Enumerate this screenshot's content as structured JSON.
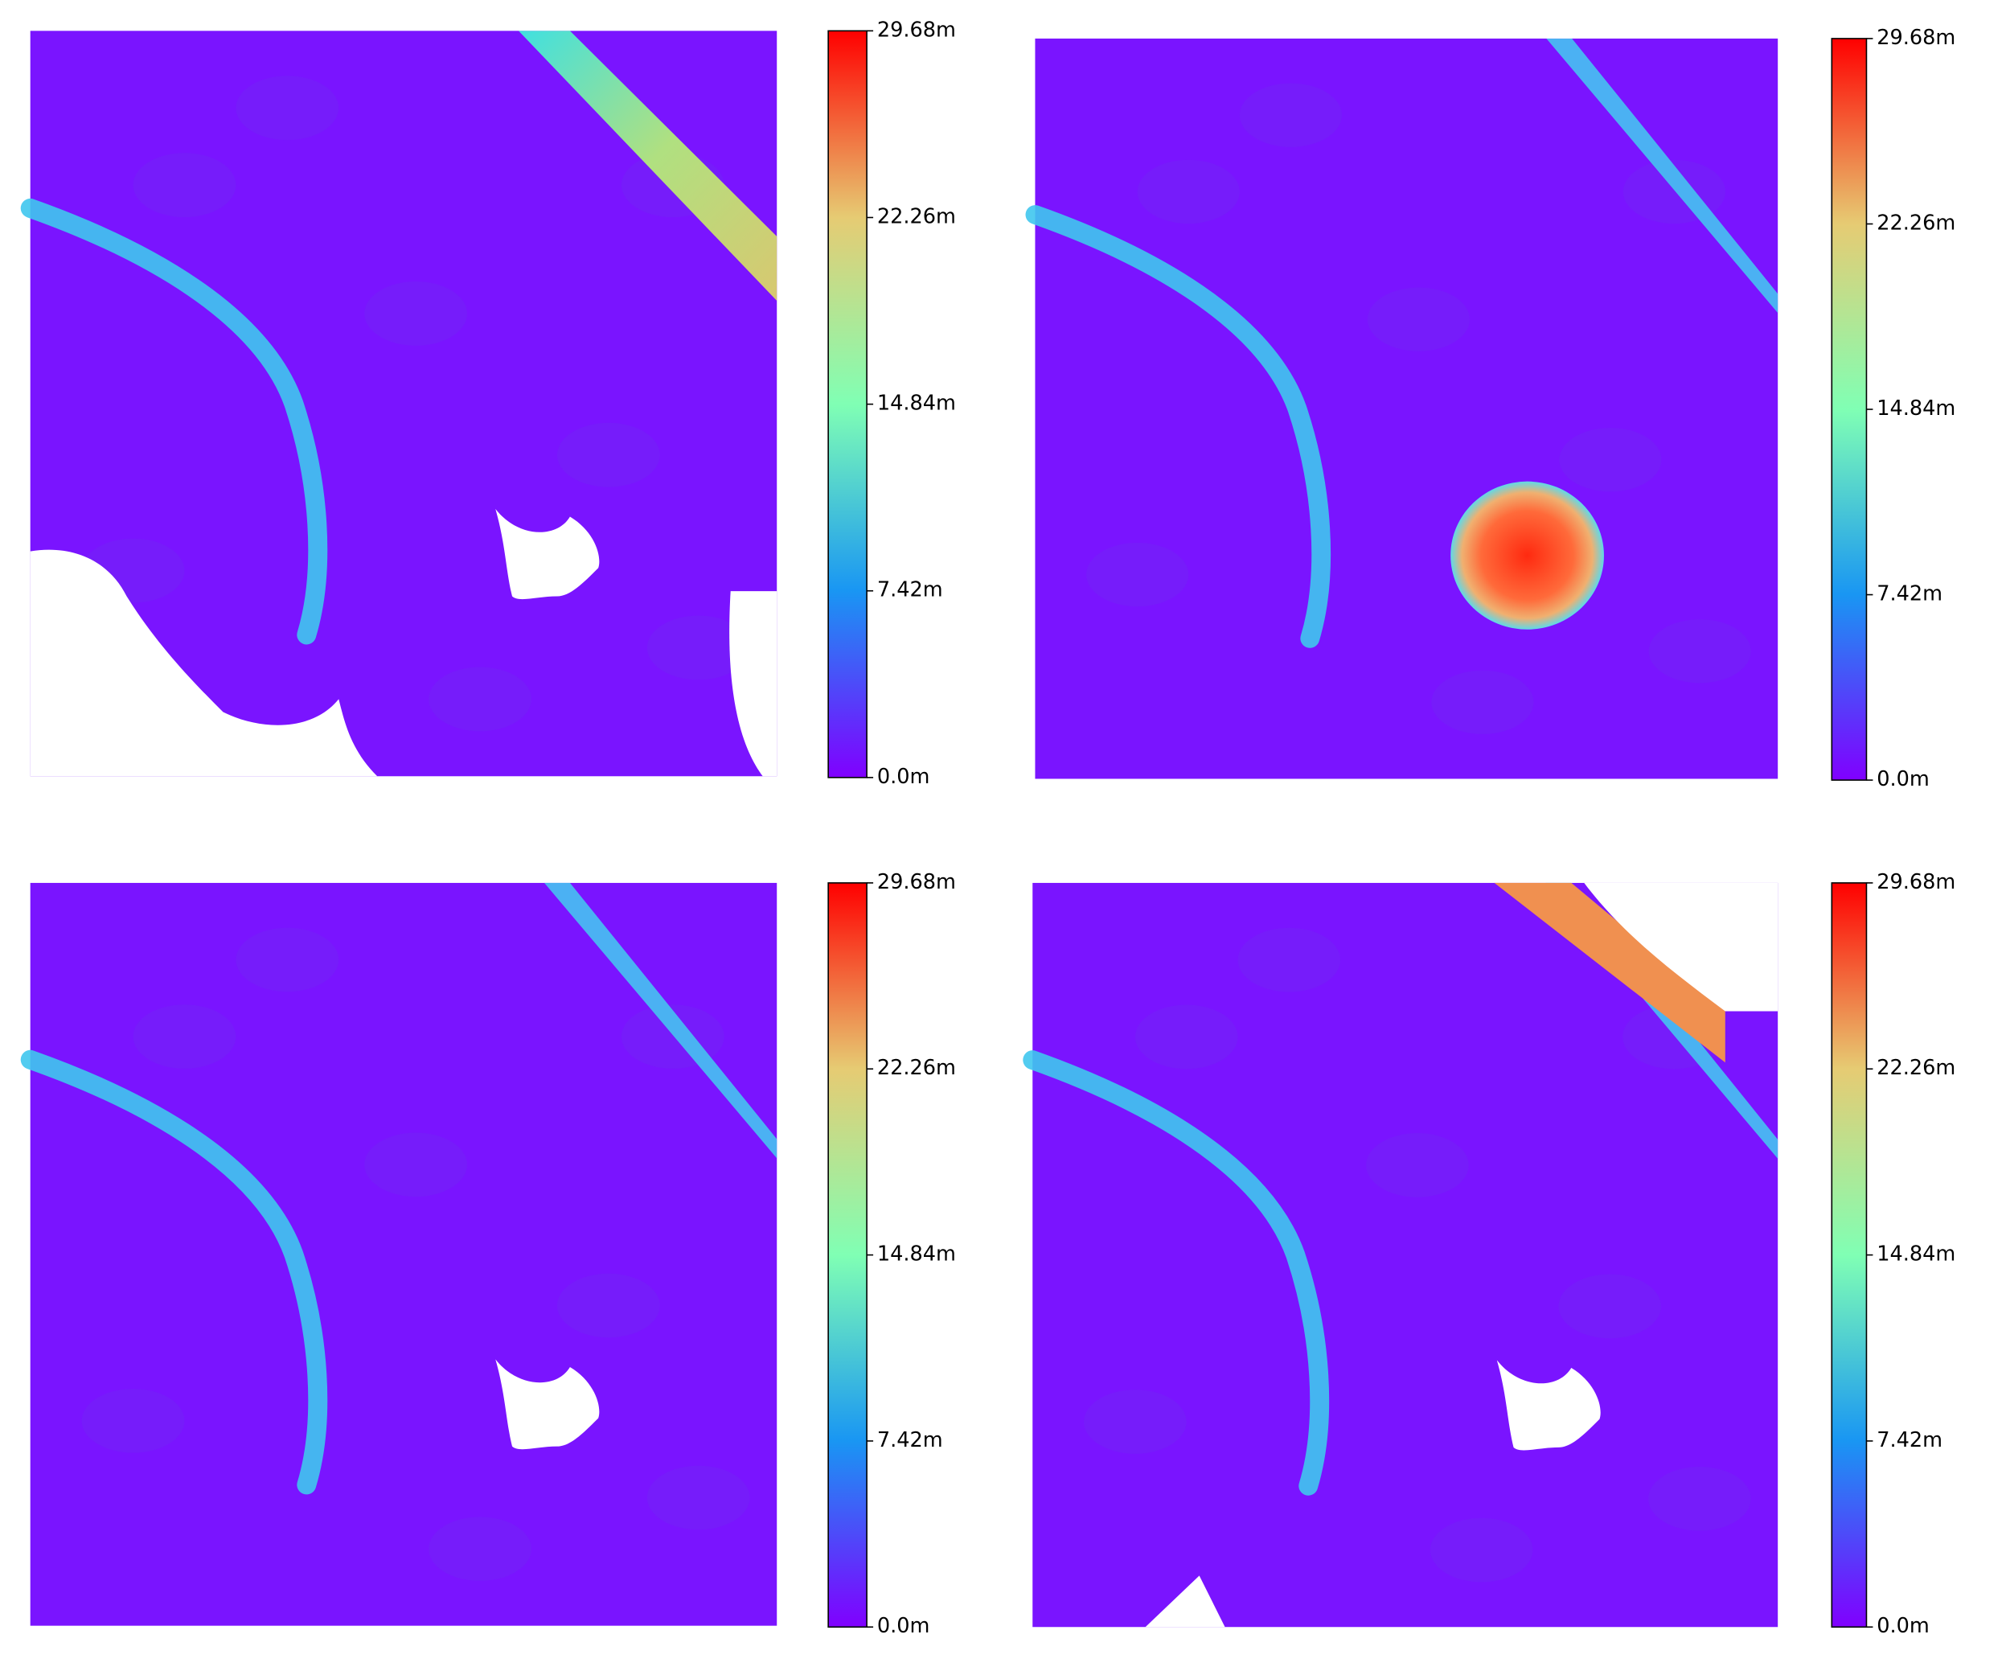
{
  "chart_data": [
    {
      "type": "heatmap",
      "colormap": "rainbow",
      "clim": [
        0,
        29.68
      ],
      "cticks": [
        {
          "value": 0,
          "label": "0.0m"
        },
        {
          "value": 7.42,
          "label": "7.42m"
        },
        {
          "value": 14.84,
          "label": "14.84m"
        },
        {
          "value": 22.26,
          "label": "22.26m"
        },
        {
          "value": 29.68,
          "label": "29.68m"
        }
      ]
    },
    {
      "type": "heatmap",
      "colormap": "rainbow",
      "clim": [
        0,
        29.68
      ],
      "cticks": [
        {
          "value": 0,
          "label": "0.0m"
        },
        {
          "value": 7.42,
          "label": "7.42m"
        },
        {
          "value": 14.84,
          "label": "14.84m"
        },
        {
          "value": 22.26,
          "label": "22.26m"
        },
        {
          "value": 29.68,
          "label": "29.68m"
        }
      ]
    },
    {
      "type": "heatmap",
      "colormap": "rainbow",
      "clim": [
        0,
        29.68
      ],
      "cticks": [
        {
          "value": 0,
          "label": "0.0m"
        },
        {
          "value": 7.42,
          "label": "7.42m"
        },
        {
          "value": 14.84,
          "label": "14.84m"
        },
        {
          "value": 22.26,
          "label": "22.26m"
        },
        {
          "value": 29.68,
          "label": "29.68m"
        }
      ]
    },
    {
      "type": "heatmap",
      "colormap": "rainbow",
      "clim": [
        0,
        29.68
      ],
      "cticks": [
        {
          "value": 0,
          "label": "0.0m"
        },
        {
          "value": 7.42,
          "label": "7.42m"
        },
        {
          "value": 14.84,
          "label": "14.84m"
        },
        {
          "value": 22.26,
          "label": "22.26m"
        },
        {
          "value": 29.68,
          "label": "29.68m"
        }
      ]
    }
  ]
}
